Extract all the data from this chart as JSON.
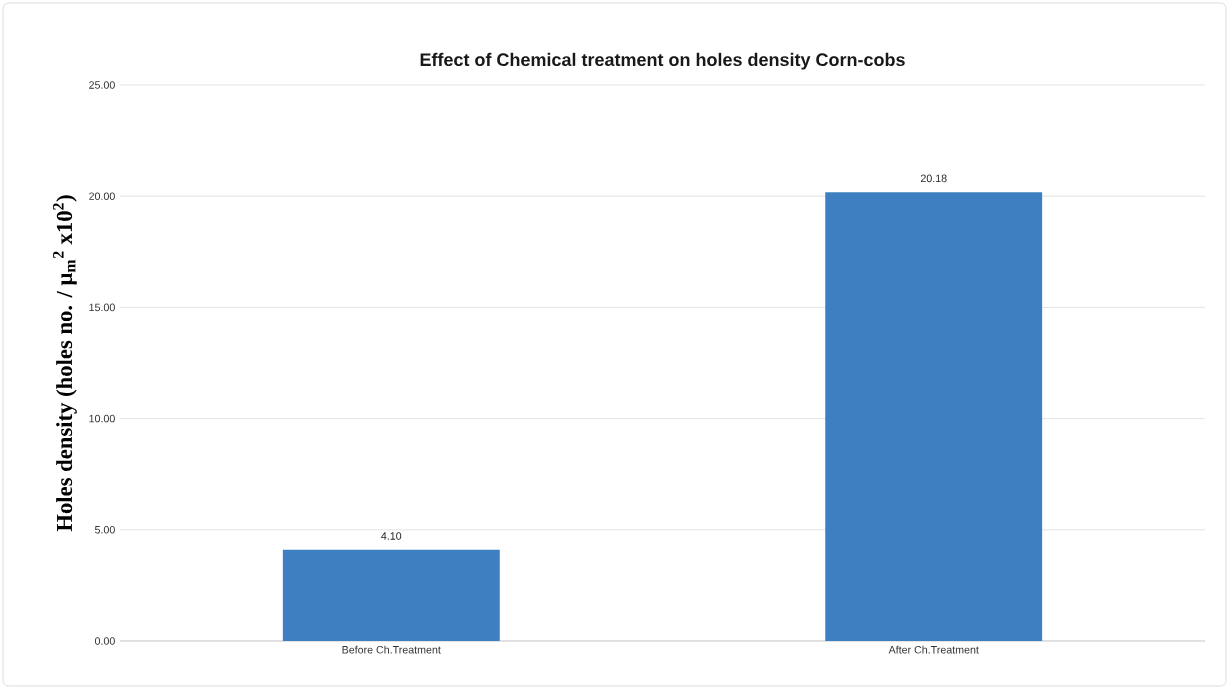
{
  "chart_data": {
    "type": "bar",
    "title": "Effect of Chemical treatment on holes density Corn-cobs",
    "ylabel": "Holes density (holes no. / μ$_{m}$$^{2}$ x10$^{2}$)",
    "categories": [
      "Before Ch.Treatment",
      "After Ch.Treatment"
    ],
    "values": [
      4.1,
      20.18
    ],
    "value_labels": [
      "4.10",
      "20.18"
    ],
    "color": "#3d7fc0",
    "ylim": [
      0,
      25
    ],
    "yticks": [
      {
        "value": 0,
        "label": "0.00"
      },
      {
        "value": 5,
        "label": "5.00"
      },
      {
        "value": 10,
        "label": "10.00"
      },
      {
        "value": 15,
        "label": "15.00"
      },
      {
        "value": 20,
        "label": "20.00"
      },
      {
        "value": 25,
        "label": "25.00"
      }
    ],
    "grid": "y"
  }
}
